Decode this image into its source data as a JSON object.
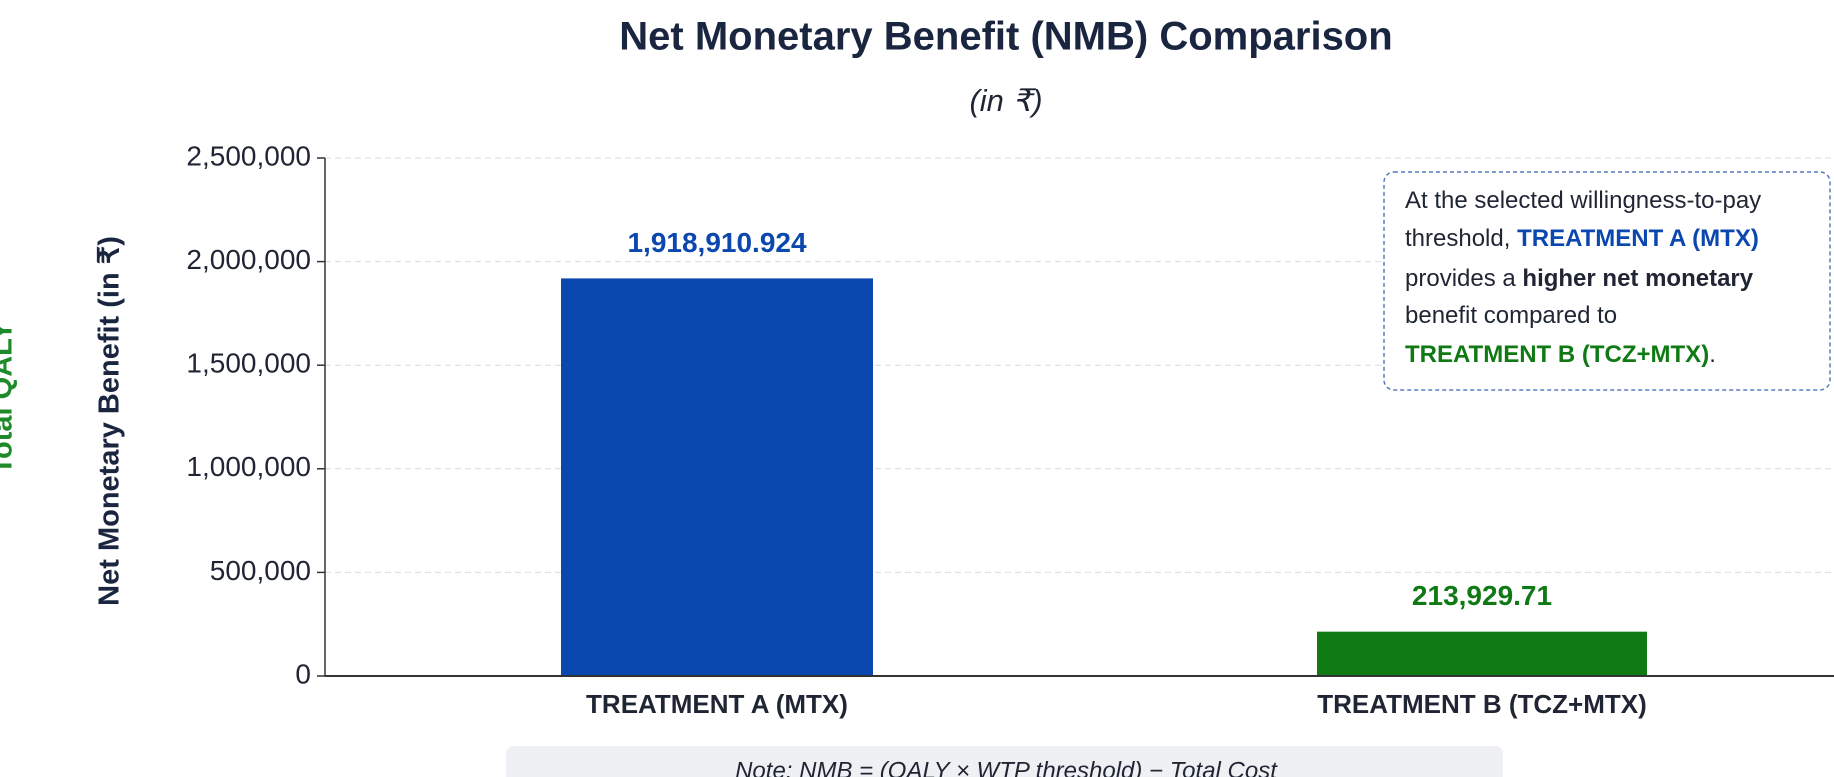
{
  "chart_data": {
    "type": "bar",
    "title": "Net Monetary Benefit (NMB) Comparison",
    "subtitle": "(in ₹)",
    "y_label": "Net Monetary Benefit (in ₹)",
    "secondary_label": "Total QALY",
    "categories": [
      "TREATMENT A (MTX)",
      "TREATMENT B (TCZ+MTX)"
    ],
    "values": [
      1918910.924,
      213929.71
    ],
    "value_labels": [
      "1,918,910.924",
      "213,929.71"
    ],
    "colors": [
      "#0a47ae",
      "#0f7a14"
    ],
    "ylim": [
      0,
      2500000
    ],
    "yticks": [
      0,
      {
        "value": 500000,
        "label": "500,000"
      },
      {
        "value": 1000000,
        "label": "1,000,000"
      },
      {
        "value": 1500000,
        "label": "1,500,000"
      },
      {
        "value": 2000000,
        "label": "2,000,000"
      },
      {
        "value": 2500000,
        "label": "2,500,000"
      }
    ],
    "grid": true,
    "annotation": [
      "At the selected willingness-to-pay",
      "threshold, ",
      "TREATMENT A (MTX)",
      "provides a ",
      "higher net monetary",
      "benefit compared to",
      "TREATMENT B (TCZ+MTX)",
      "."
    ],
    "note": "Note: NMB = (QALY × WTP threshold) − Total Cost"
  }
}
